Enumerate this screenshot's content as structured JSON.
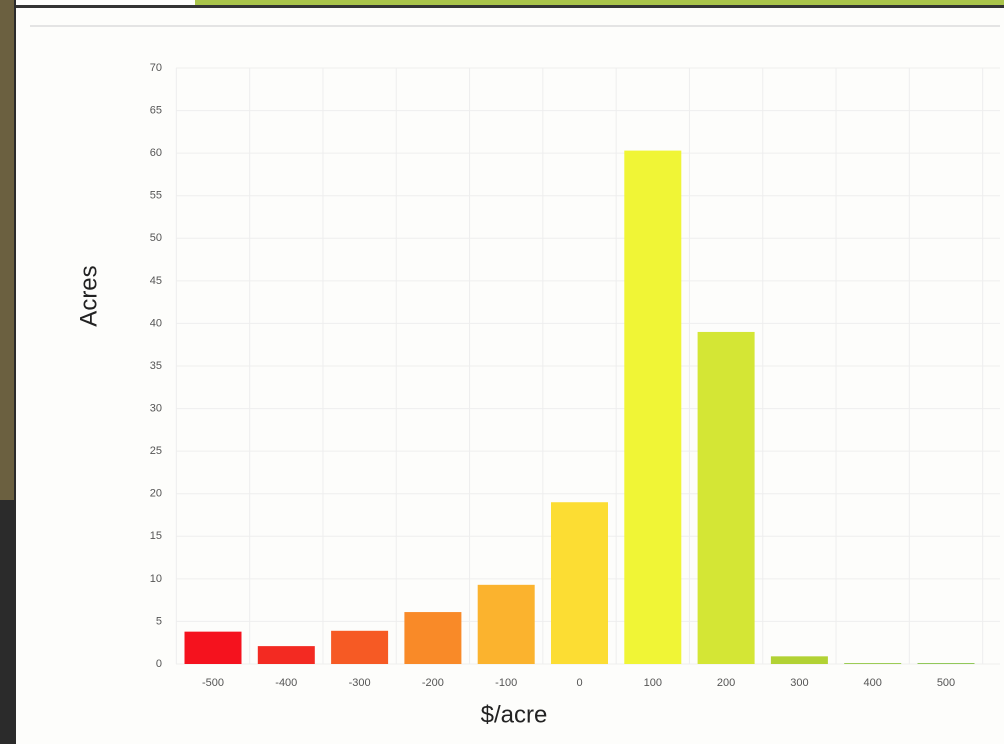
{
  "chart_data": {
    "type": "bar",
    "x_label": "$/acre",
    "y_label": "Acres",
    "categories": [
      "-500",
      "-400",
      "-300",
      "-200",
      "-100",
      "0",
      "100",
      "200",
      "300",
      "400",
      "500"
    ],
    "values": [
      3.8,
      2.1,
      3.9,
      6.1,
      9.3,
      19,
      60.3,
      39,
      0.9,
      0.1,
      0.1
    ],
    "colors": [
      "#f5121e",
      "#f32a22",
      "#f65a24",
      "#f98a28",
      "#fbb32e",
      "#fcdd33",
      "#f0f536",
      "#d4e635",
      "#b2d234",
      "#8cc43a",
      "#7fbf3f"
    ],
    "ylim": [
      0,
      70
    ],
    "yticks": [
      0,
      5,
      10,
      15,
      20,
      25,
      30,
      35,
      40,
      45,
      50,
      55,
      60,
      65,
      70
    ],
    "grid": true
  }
}
